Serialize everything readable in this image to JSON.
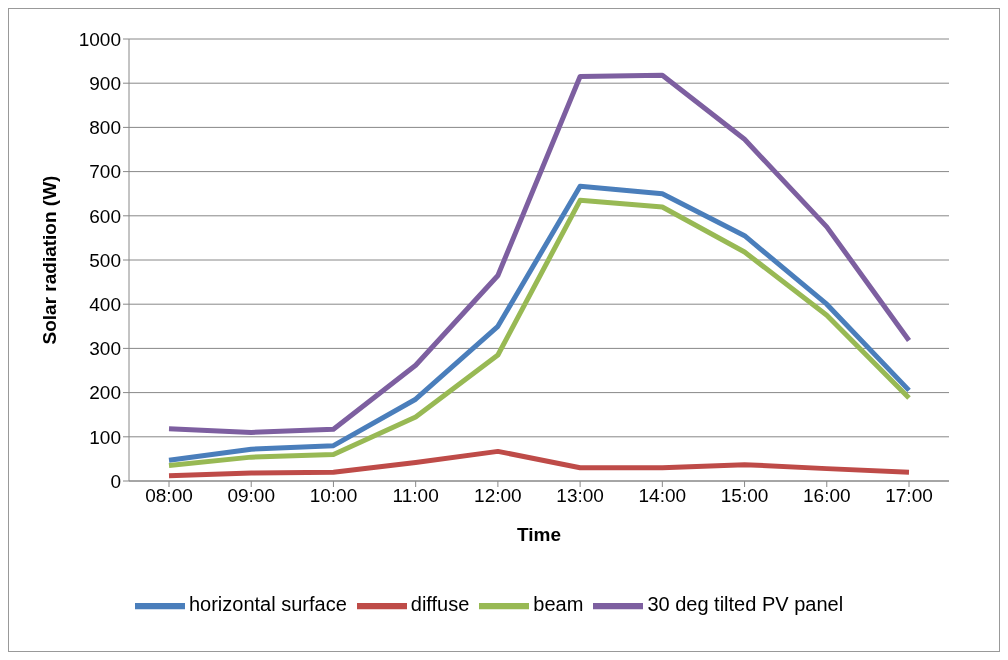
{
  "chart_data": {
    "type": "line",
    "xlabel": "Time",
    "ylabel": "Solar radiation (W)",
    "categories": [
      "08:00",
      "09:00",
      "10:00",
      "11:00",
      "12:00",
      "13:00",
      "14:00",
      "15:00",
      "16:00",
      "17:00"
    ],
    "series": [
      {
        "name": "horizontal surface",
        "color": "#4a7ebb",
        "values": [
          47,
          72,
          80,
          185,
          350,
          667,
          650,
          555,
          400,
          205
        ]
      },
      {
        "name": "diffuse",
        "color": "#be4b48",
        "values": [
          12,
          18,
          20,
          42,
          67,
          30,
          30,
          37,
          28,
          20
        ]
      },
      {
        "name": "beam",
        "color": "#98b954",
        "values": [
          35,
          54,
          60,
          145,
          285,
          635,
          620,
          518,
          375,
          188
        ]
      },
      {
        "name": "30 deg tilted PV panel",
        "color": "#7d5fa0",
        "values": [
          118,
          110,
          117,
          262,
          465,
          915,
          918,
          773,
          575,
          318
        ]
      }
    ],
    "ylim": [
      0,
      1000
    ],
    "yticks": [
      0,
      100,
      200,
      300,
      400,
      500,
      600,
      700,
      800,
      900,
      1000
    ],
    "grid": "y",
    "legend": "bottom",
    "marker": "none",
    "line_style": "solid"
  }
}
